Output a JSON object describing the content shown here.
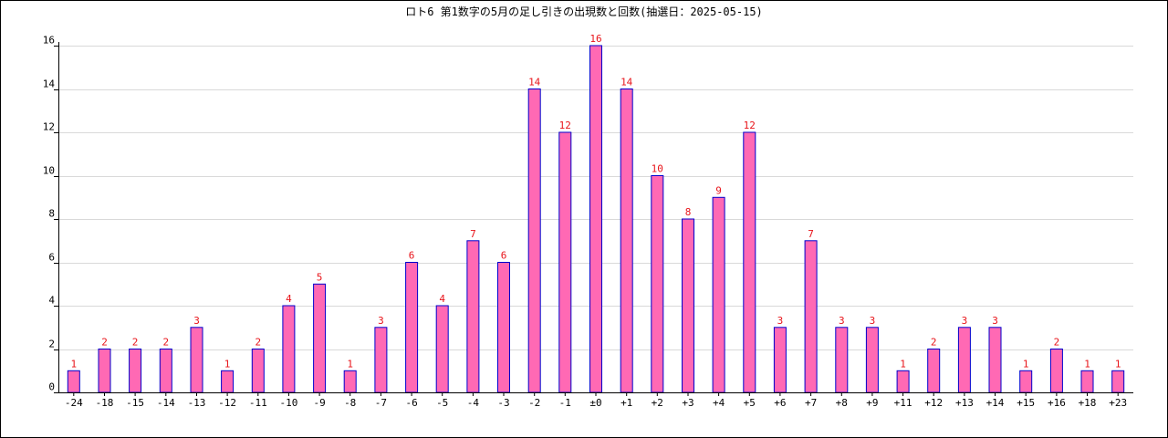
{
  "chart_data": {
    "type": "bar",
    "title": "ロト6 第1数字の5月の足し引きの出現数と回数(抽選日：2025-05-15)",
    "xlabel": "",
    "ylabel": "",
    "categories": [
      "-24",
      "-18",
      "-15",
      "-14",
      "-13",
      "-12",
      "-11",
      "-10",
      "-9",
      "-8",
      "-7",
      "-6",
      "-5",
      "-4",
      "-3",
      "-2",
      "-1",
      "±0",
      "+1",
      "+2",
      "+3",
      "+4",
      "+5",
      "+6",
      "+7",
      "+8",
      "+9",
      "+11",
      "+12",
      "+13",
      "+14",
      "+15",
      "+16",
      "+18",
      "+23"
    ],
    "values": [
      1,
      2,
      2,
      2,
      3,
      1,
      2,
      4,
      5,
      1,
      3,
      6,
      4,
      7,
      6,
      14,
      12,
      16,
      14,
      10,
      8,
      9,
      12,
      3,
      7,
      3,
      3,
      1,
      2,
      3,
      3,
      1,
      2,
      1,
      1
    ],
    "ylim": [
      0,
      16
    ],
    "yticks": [
      0,
      2,
      4,
      6,
      8,
      10,
      12,
      14,
      16
    ],
    "grid": true,
    "legend": "none",
    "colors": {
      "bar_fill": "#ff69b4",
      "bar_stroke": "#0000cd",
      "data_label": "#e8141a",
      "grid": "#d9d9d9",
      "axis": "#000000"
    }
  }
}
